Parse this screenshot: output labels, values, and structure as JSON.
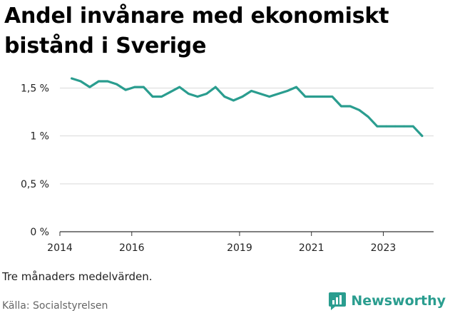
{
  "title": "Andel invånare med ekonomiskt bistånd i Sverige",
  "note": "Tre månaders medelvärden.",
  "source": "Källa: Socialstyrelsen",
  "brand": {
    "name": "Newsworthy",
    "icon": "newsworthy-logo-icon",
    "color": "#2a9d8f"
  },
  "chart_data": {
    "type": "line",
    "title": "Andel invånare med ekonomiskt bistånd i Sverige",
    "xlabel": "",
    "ylabel": "",
    "xlim": [
      2014.0,
      2024.4
    ],
    "ylim": [
      0,
      1.6
    ],
    "x_ticks": [
      {
        "value": 2014,
        "label": "2014"
      },
      {
        "value": 2016,
        "label": "2016"
      },
      {
        "value": 2019,
        "label": "2019"
      },
      {
        "value": 2021,
        "label": "2021"
      },
      {
        "value": 2023,
        "label": "2023"
      }
    ],
    "y_ticks": [
      {
        "value": 0,
        "label": "0 %"
      },
      {
        "value": 0.5,
        "label": "0,5 %"
      },
      {
        "value": 1,
        "label": "1 %"
      },
      {
        "value": 1.5,
        "label": "1,5 %"
      }
    ],
    "grid": true,
    "line_color": "#2a9d8f",
    "series": [
      {
        "name": "Andel invånare med ekonomiskt bistånd",
        "x": [
          2014.33,
          2014.58,
          2014.83,
          2015.08,
          2015.33,
          2015.58,
          2015.83,
          2016.08,
          2016.33,
          2016.58,
          2016.83,
          2017.08,
          2017.33,
          2017.58,
          2017.83,
          2018.08,
          2018.33,
          2018.58,
          2018.83,
          2019.08,
          2019.33,
          2019.58,
          2019.83,
          2020.08,
          2020.33,
          2020.58,
          2020.83,
          2021.08,
          2021.33,
          2021.58,
          2021.83,
          2022.08,
          2022.33,
          2022.58,
          2022.83,
          2023.08,
          2023.33,
          2023.58,
          2023.83,
          2024.08
        ],
        "values": [
          1.6,
          1.57,
          1.51,
          1.57,
          1.57,
          1.54,
          1.48,
          1.51,
          1.51,
          1.41,
          1.41,
          1.46,
          1.51,
          1.44,
          1.41,
          1.44,
          1.51,
          1.41,
          1.37,
          1.41,
          1.47,
          1.44,
          1.41,
          1.44,
          1.47,
          1.51,
          1.41,
          1.41,
          1.41,
          1.41,
          1.31,
          1.31,
          1.27,
          1.2,
          1.1,
          1.1,
          1.1,
          1.1,
          1.1,
          1.0
        ]
      }
    ]
  }
}
